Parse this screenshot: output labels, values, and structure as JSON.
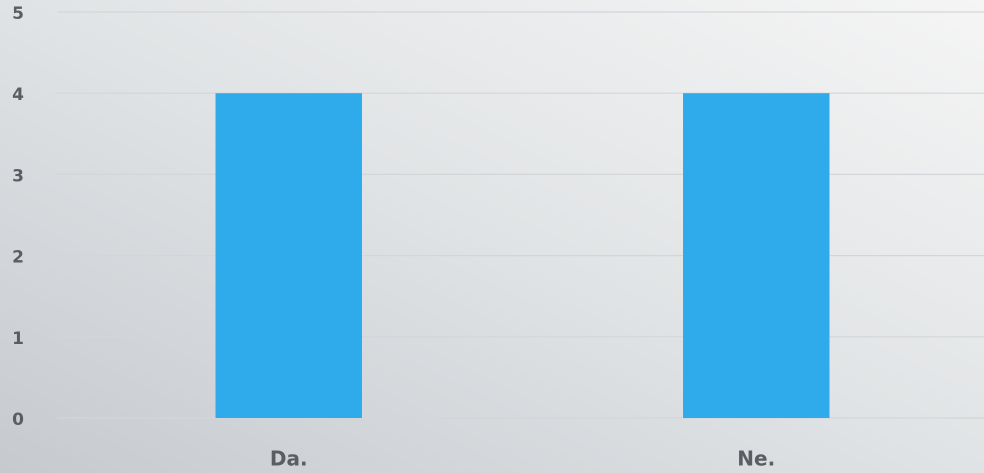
{
  "chart_data": {
    "type": "bar",
    "categories": [
      "Da.",
      "Ne."
    ],
    "values": [
      4,
      4
    ],
    "color": "#2fabeb",
    "ylim": [
      0,
      5
    ],
    "yticks": [
      0,
      1,
      2,
      3,
      4,
      5
    ],
    "grid": true
  }
}
